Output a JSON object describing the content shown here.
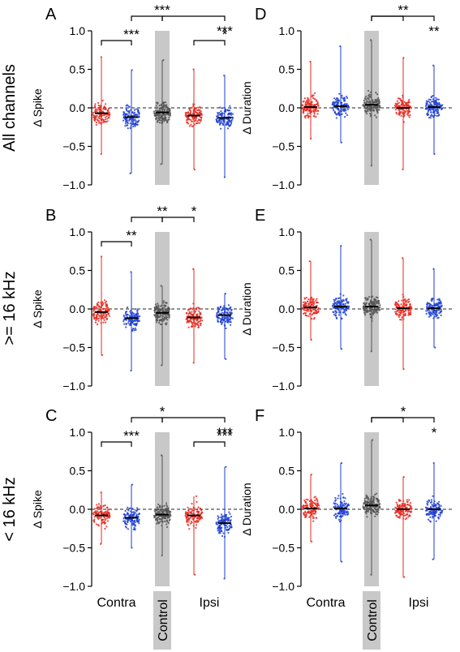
{
  "colors": {
    "contra_left": "#e8281e",
    "contra_right": "#1f3fd1",
    "control": "#555555",
    "control_band": "#c8c8c8"
  },
  "row_labels": [
    "All channels",
    ">= 16 kHz",
    "< 16 kHz"
  ],
  "x_labels": {
    "contra": "Contra",
    "control": "Control",
    "ipsi": "Ipsi"
  },
  "chart_data": [
    {
      "panel": "A",
      "type": "scatter",
      "ylabel": "Δ Spike",
      "ylim": [
        -1.0,
        1.0
      ],
      "yticks": [
        "1.0",
        "0.5",
        "0.0",
        "−0.5",
        "−1.0"
      ],
      "series": [
        {
          "group": "Contra",
          "color": "red",
          "median": -0.07,
          "min": -0.6,
          "max": 0.66
        },
        {
          "group": "Contra",
          "color": "blue",
          "median": -0.12,
          "min": -0.85,
          "max": 0.49
        },
        {
          "group": "Control",
          "color": "gray",
          "median": -0.06,
          "min": -0.73,
          "max": 0.62
        },
        {
          "group": "Ipsi",
          "color": "red",
          "median": -0.1,
          "min": -0.8,
          "max": 0.5
        },
        {
          "group": "Ipsi",
          "color": "blue",
          "median": -0.13,
          "min": -0.9,
          "max": 0.42
        }
      ],
      "significance": [
        {
          "from": 0,
          "to": 1,
          "label": "***"
        },
        {
          "from": 1,
          "to": 2,
          "label": "***"
        },
        {
          "from": 2,
          "to": 4,
          "label": "***"
        },
        {
          "from": 3,
          "to": 4,
          "label": "*"
        }
      ]
    },
    {
      "panel": "B",
      "type": "scatter",
      "ylabel": "Δ Spike",
      "ylim": [
        -1.0,
        1.0
      ],
      "yticks": [
        "1.0",
        "0.5",
        "0.0",
        "−0.5",
        "−1.0"
      ],
      "series": [
        {
          "group": "Contra",
          "color": "red",
          "median": -0.04,
          "min": -0.6,
          "max": 0.68
        },
        {
          "group": "Contra",
          "color": "blue",
          "median": -0.12,
          "min": -0.8,
          "max": 0.48
        },
        {
          "group": "Control",
          "color": "gray",
          "median": -0.05,
          "min": -0.73,
          "max": 0.3
        },
        {
          "group": "Ipsi",
          "color": "red",
          "median": -0.11,
          "min": -0.7,
          "max": 0.52
        },
        {
          "group": "Ipsi",
          "color": "blue",
          "median": -0.08,
          "min": -0.65,
          "max": 0.2
        }
      ],
      "significance": [
        {
          "from": 0,
          "to": 1,
          "label": "**"
        },
        {
          "from": 1,
          "to": 2,
          "label": "**"
        },
        {
          "from": 2,
          "to": 3,
          "label": "*"
        }
      ]
    },
    {
      "panel": "C",
      "type": "scatter",
      "ylabel": "Δ Spike",
      "ylim": [
        -1.0,
        1.0
      ],
      "yticks": [
        "1.0",
        "0.5",
        "0.0",
        "−0.5",
        "−1.0"
      ],
      "series": [
        {
          "group": "Contra",
          "color": "red",
          "median": -0.08,
          "min": -0.45,
          "max": 0.22
        },
        {
          "group": "Contra",
          "color": "blue",
          "median": -0.11,
          "min": -0.5,
          "max": 0.32
        },
        {
          "group": "Control",
          "color": "gray",
          "median": -0.07,
          "min": -0.6,
          "max": 0.7
        },
        {
          "group": "Ipsi",
          "color": "red",
          "median": -0.08,
          "min": -0.85,
          "max": 0.17
        },
        {
          "group": "Ipsi",
          "color": "blue",
          "median": -0.18,
          "min": -0.9,
          "max": 0.55
        }
      ],
      "significance": [
        {
          "from": 0,
          "to": 1,
          "label": "***"
        },
        {
          "from": 1,
          "to": 2,
          "label": "*"
        },
        {
          "from": 2,
          "to": 4,
          "label": "***"
        },
        {
          "from": 3,
          "to": 4,
          "label": "***"
        }
      ]
    },
    {
      "panel": "D",
      "type": "scatter",
      "ylabel": "Δ Duration",
      "ylim": [
        -1.0,
        1.0
      ],
      "yticks": [
        "1.0",
        "0.5",
        "0.0",
        "−0.5",
        "−1.0"
      ],
      "series": [
        {
          "group": "Contra",
          "color": "red",
          "median": 0.01,
          "min": -0.4,
          "max": 0.6
        },
        {
          "group": "Contra",
          "color": "blue",
          "median": 0.02,
          "min": -0.45,
          "max": 0.8
        },
        {
          "group": "Control",
          "color": "gray",
          "median": 0.04,
          "min": -0.75,
          "max": 0.88
        },
        {
          "group": "Ipsi",
          "color": "red",
          "median": 0.0,
          "min": -0.8,
          "max": 0.65
        },
        {
          "group": "Ipsi",
          "color": "blue",
          "median": 0.01,
          "min": -0.6,
          "max": 0.55
        }
      ],
      "significance": [
        {
          "from": 2,
          "to": 3,
          "label": "**"
        },
        {
          "from": 2,
          "to": 4,
          "label": "**"
        }
      ]
    },
    {
      "panel": "E",
      "type": "scatter",
      "ylabel": "Δ Duration",
      "ylim": [
        -1.0,
        1.0
      ],
      "yticks": [
        "1.0",
        "0.5",
        "0.0",
        "−0.5",
        "−1.0"
      ],
      "series": [
        {
          "group": "Contra",
          "color": "red",
          "median": 0.02,
          "min": -0.4,
          "max": 0.62
        },
        {
          "group": "Contra",
          "color": "blue",
          "median": 0.03,
          "min": -0.52,
          "max": 0.82
        },
        {
          "group": "Control",
          "color": "gray",
          "median": 0.03,
          "min": -0.55,
          "max": 0.9
        },
        {
          "group": "Ipsi",
          "color": "red",
          "median": 0.01,
          "min": -0.78,
          "max": 0.66
        },
        {
          "group": "Ipsi",
          "color": "blue",
          "median": 0.01,
          "min": -0.5,
          "max": 0.52
        }
      ],
      "significance": []
    },
    {
      "panel": "F",
      "type": "scatter",
      "ylabel": "Δ Duration",
      "ylim": [
        -1.0,
        1.0
      ],
      "yticks": [
        "1.0",
        "0.5",
        "0.0",
        "−0.5",
        "−1.0"
      ],
      "series": [
        {
          "group": "Contra",
          "color": "red",
          "median": 0.01,
          "min": -0.42,
          "max": 0.45
        },
        {
          "group": "Contra",
          "color": "blue",
          "median": 0.01,
          "min": -0.68,
          "max": 0.6
        },
        {
          "group": "Control",
          "color": "gray",
          "median": 0.05,
          "min": -0.85,
          "max": 0.9
        },
        {
          "group": "Ipsi",
          "color": "red",
          "median": 0.0,
          "min": -0.88,
          "max": 0.42
        },
        {
          "group": "Ipsi",
          "color": "blue",
          "median": 0.0,
          "min": -0.65,
          "max": 0.6
        }
      ],
      "significance": [
        {
          "from": 2,
          "to": 3,
          "label": "*"
        },
        {
          "from": 2,
          "to": 4,
          "label": "*"
        }
      ]
    }
  ]
}
